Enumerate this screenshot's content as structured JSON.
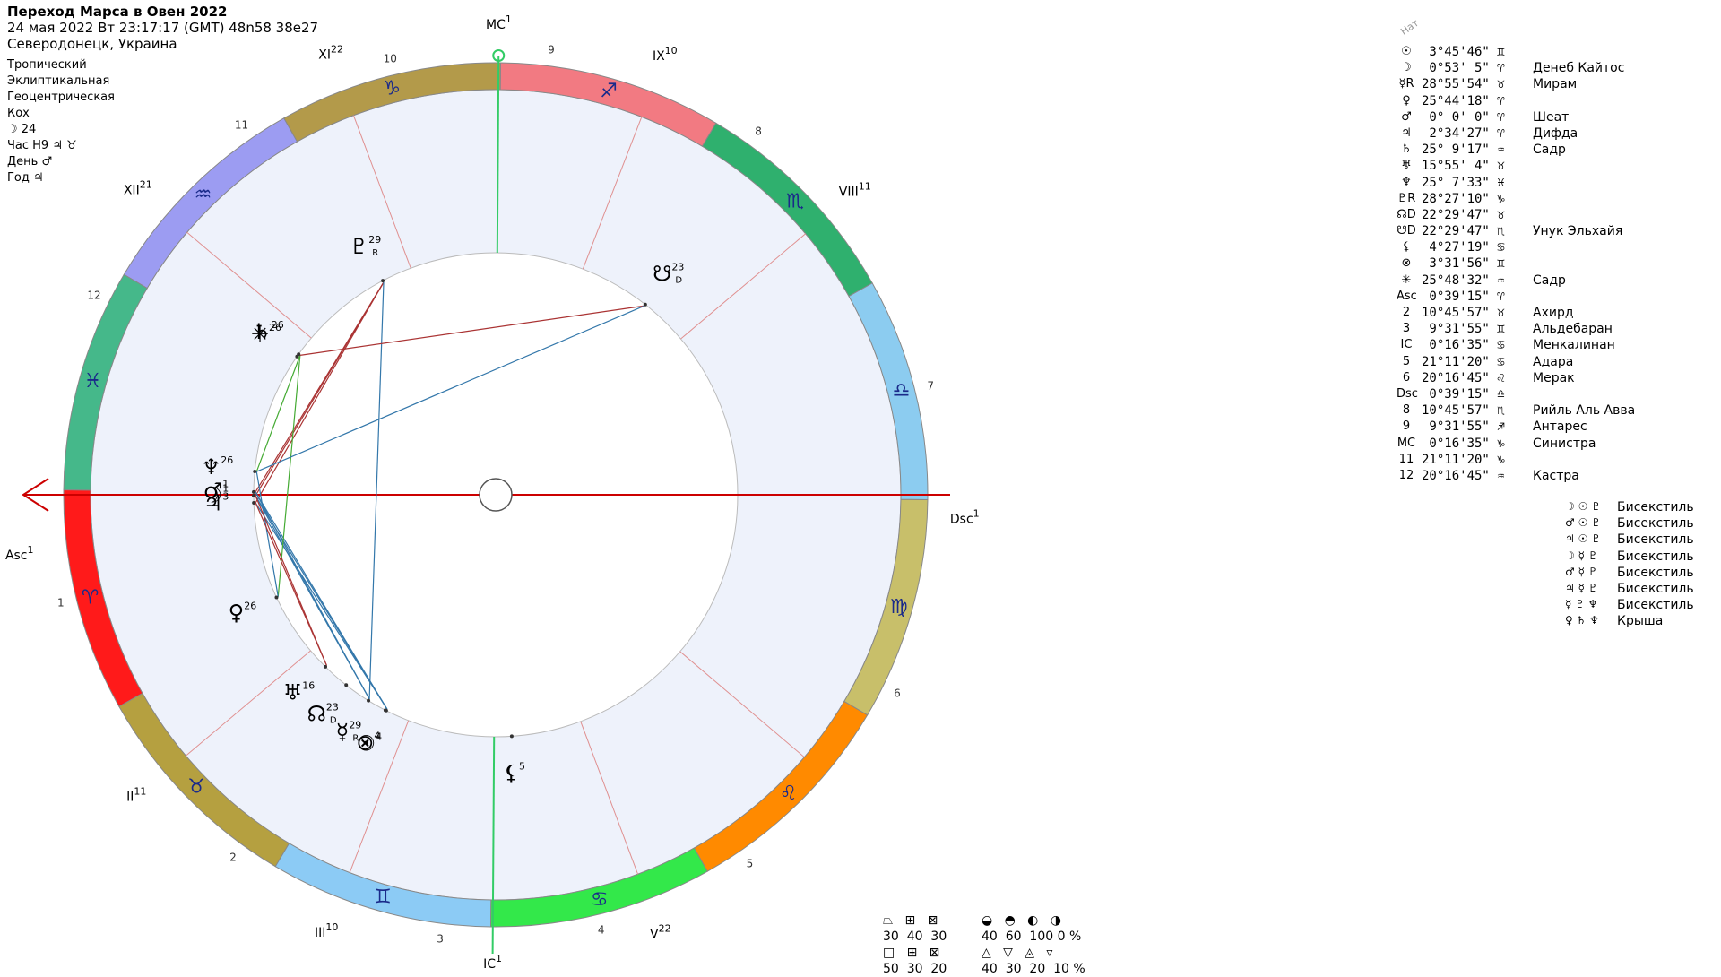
{
  "header": {
    "title": "Переход Марса в Овен 2022",
    "datetime": "24 мая 2022   Вт   23:17:17 (GMT) 48n58  38e27",
    "location": "Северодонецк, Украина"
  },
  "params": [
    "Тропический",
    "Эклиптикальная",
    "Геоцентрическая",
    "Кох",
    "☽  24",
    "Час Н9 ♃ ♉",
    "День ♂",
    "Год ♃"
  ],
  "colors": {
    "aries": "#ff1a1a",
    "taurus": "#b5a040",
    "gemini": "#8ccbf5",
    "cancer": "#33e84a",
    "leo": "#ff8a00",
    "virgo": "#c8bf6a",
    "libra": "#8cccf0",
    "scorpio": "#2fb06e",
    "sagittarius": "#f27a82",
    "capricorn": "#b39a4a",
    "aquarius": "#9c9cf2",
    "pisces": "#45b88a",
    "axis_red": "#cc0000",
    "axis_green": "#33cc66",
    "aspect_red": "#aa3333",
    "aspect_blue": "#3377aa",
    "aspect_green": "#44aa33"
  },
  "wheel": {
    "signs": [
      {
        "name": "aries",
        "glyph": "♈",
        "color_key": "aries"
      },
      {
        "name": "taurus",
        "glyph": "♉",
        "color_key": "taurus"
      },
      {
        "name": "gemini",
        "glyph": "♊",
        "color_key": "gemini"
      },
      {
        "name": "cancer",
        "glyph": "♋",
        "color_key": "cancer"
      },
      {
        "name": "leo",
        "glyph": "♌",
        "color_key": "leo"
      },
      {
        "name": "virgo",
        "glyph": "♍",
        "color_key": "virgo"
      },
      {
        "name": "libra",
        "glyph": "♎",
        "color_key": "libra"
      },
      {
        "name": "scorpio",
        "glyph": "♏",
        "color_key": "scorpio"
      },
      {
        "name": "sagittarius",
        "glyph": "♐",
        "color_key": "sagittarius"
      },
      {
        "name": "capricorn",
        "glyph": "♑",
        "color_key": "capricorn"
      },
      {
        "name": "aquarius",
        "glyph": "♒",
        "color_key": "aquarius"
      },
      {
        "name": "pisces",
        "glyph": "♓",
        "color_key": "pisces"
      }
    ],
    "asc_longitude": 0.65,
    "mc_longitude": 270.27,
    "house_cusps": [
      {
        "num": "1",
        "roman": "",
        "deg": "",
        "lon": 0.65
      },
      {
        "num": "2",
        "roman": "II",
        "deg": "11",
        "lon": 40.76
      },
      {
        "num": "3",
        "roman": "III",
        "deg": "10",
        "lon": 69.53
      },
      {
        "num": "4",
        "roman": "IC",
        "deg": "1",
        "lon": 90.27
      },
      {
        "num": "5",
        "roman": "V",
        "deg": "22",
        "lon": 111.19
      },
      {
        "num": "6",
        "roman": "",
        "deg": "",
        "lon": 140.28
      },
      {
        "num": "7",
        "roman": "",
        "deg": "",
        "lon": 180.65
      },
      {
        "num": "8",
        "roman": "VIII",
        "deg": "11",
        "lon": 220.76
      },
      {
        "num": "9",
        "roman": "IX",
        "deg": "10",
        "lon": 249.53
      },
      {
        "num": "10",
        "roman": "MC",
        "deg": "1",
        "lon": 270.27
      },
      {
        "num": "11",
        "roman": "XI",
        "deg": "22",
        "lon": 291.19
      },
      {
        "num": "12",
        "roman": "XII",
        "deg": "21",
        "lon": 320.28
      }
    ],
    "axis_labels": {
      "asc": "Asc",
      "asc_deg": "1",
      "dsc": "Dsc",
      "dsc_deg": "1"
    },
    "planets": [
      {
        "glyph": "☉",
        "deg": "4",
        "lon": 63.76
      },
      {
        "glyph": "☽",
        "deg": "1",
        "lon": 0.88
      },
      {
        "glyph": "☿",
        "deg": "29",
        "retro": "R",
        "lon": 58.93
      },
      {
        "glyph": "♀",
        "deg": "26",
        "lon": 25.74
      },
      {
        "glyph": "♂",
        "deg": "1",
        "lon": 0.0
      },
      {
        "glyph": "♃",
        "deg": "3",
        "lon": 2.57
      },
      {
        "glyph": "♄",
        "deg": "26",
        "lon": 325.15
      },
      {
        "glyph": "♅",
        "deg": "16",
        "lon": 45.93
      },
      {
        "glyph": "♆",
        "deg": "26",
        "lon": 355.13
      },
      {
        "glyph": "♇",
        "deg": "29",
        "retro": "R",
        "lon": 298.45
      },
      {
        "glyph": "☊",
        "deg": "23",
        "retro": "D",
        "lon": 52.49
      },
      {
        "glyph": "☋",
        "deg": "23",
        "retro": "D",
        "lon": 232.49
      },
      {
        "glyph": "⚸",
        "deg": "5",
        "lon": 94.45
      },
      {
        "glyph": "⊗",
        "deg": "4",
        "lon": 63.53
      },
      {
        "glyph": "✳",
        "deg": "26",
        "lon": 325.81
      }
    ]
  },
  "planet_table": {
    "header": "Нат",
    "rows": [
      {
        "sym": "☉",
        "pos": " 3°45'46\" ♊",
        "star": ""
      },
      {
        "sym": "☽",
        "pos": " 0°53' 5\" ♈",
        "star": "Денеб Кайтос"
      },
      {
        "sym": "☿R",
        "pos": "28°55'54\" ♉",
        "star": "Мирам"
      },
      {
        "sym": "♀",
        "pos": "25°44'18\" ♈",
        "star": ""
      },
      {
        "sym": "♂",
        "pos": " 0° 0' 0\" ♈",
        "star": "Шеат"
      },
      {
        "sym": "♃",
        "pos": " 2°34'27\" ♈",
        "star": "Дифда"
      },
      {
        "sym": "♄",
        "pos": "25° 9'17\" ♒",
        "star": "Садр"
      },
      {
        "sym": "♅",
        "pos": "15°55' 4\" ♉",
        "star": ""
      },
      {
        "sym": "♆",
        "pos": "25° 7'33\" ♓",
        "star": ""
      },
      {
        "sym": "♇R",
        "pos": "28°27'10\" ♑",
        "star": ""
      },
      {
        "sym": "☊D",
        "pos": "22°29'47\" ♉",
        "star": ""
      },
      {
        "sym": "☋D",
        "pos": "22°29'47\" ♏",
        "star": "Унук Эльхайя"
      },
      {
        "sym": "⚸",
        "pos": " 4°27'19\" ♋",
        "star": ""
      },
      {
        "sym": "⊗",
        "pos": " 3°31'56\" ♊",
        "star": ""
      },
      {
        "sym": "✳",
        "pos": "25°48'32\" ♒",
        "star": "Садр"
      },
      {
        "sym": "Asc",
        "pos": " 0°39'15\" ♈",
        "star": ""
      },
      {
        "sym": "2",
        "pos": "10°45'57\" ♉",
        "star": "Ахирд"
      },
      {
        "sym": "3",
        "pos": " 9°31'55\" ♊",
        "star": "Альдебаран"
      },
      {
        "sym": "IC",
        "pos": " 0°16'35\" ♋",
        "star": "Менкалинан"
      },
      {
        "sym": "5",
        "pos": "21°11'20\" ♋",
        "star": "Адара"
      },
      {
        "sym": "6",
        "pos": "20°16'45\" ♌",
        "star": "Мерак"
      },
      {
        "sym": "Dsc",
        "pos": " 0°39'15\" ♎",
        "star": ""
      },
      {
        "sym": "8",
        "pos": "10°45'57\" ♏",
        "star": "Рийль Аль Авва"
      },
      {
        "sym": "9",
        "pos": " 9°31'55\" ♐",
        "star": "Антарес"
      },
      {
        "sym": "MC",
        "pos": " 0°16'35\" ♑",
        "star": "Синистра"
      },
      {
        "sym": "11",
        "pos": "21°11'20\" ♑",
        "star": ""
      },
      {
        "sym": "12",
        "pos": "20°16'45\" ♒",
        "star": "Кастра"
      }
    ]
  },
  "aspect_table": [
    {
      "syms": "☽ ☉ ♇",
      "name": "Бисекстиль"
    },
    {
      "syms": "♂ ☉ ♇",
      "name": "Бисекстиль"
    },
    {
      "syms": "♃ ☉ ♇",
      "name": "Бисекстиль"
    },
    {
      "syms": "☽ ☿ ♇",
      "name": "Бисекстиль"
    },
    {
      "syms": "♂ ☿ ♇",
      "name": "Бисекстиль"
    },
    {
      "syms": "♃ ☿ ♇",
      "name": "Бисекстиль"
    },
    {
      "syms": "☿ ♇ ♆",
      "name": "Бисекстиль"
    },
    {
      "syms": "♀ ♄ ♆",
      "name": "Крыша"
    }
  ],
  "stats": {
    "group1": {
      "rows": [
        "⏢   ⊞   ⊠",
        "30  40  30",
        "□   ⊞   ⊠",
        "50  30  20"
      ]
    },
    "group2": {
      "rows": [
        "◒   ◓   ◐   ◑",
        "40  60  100 0 %",
        "△   ▽   ◬   ▿",
        "40  30  20  10 %"
      ]
    }
  }
}
